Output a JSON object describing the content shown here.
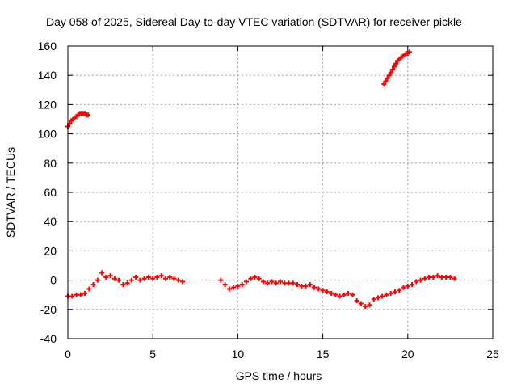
{
  "chart_data": {
    "type": "scatter",
    "title": "Day 058 of 2025, Sidereal Day-to-day VTEC variation (SDTVAR) for receiver pickle",
    "xlabel": "GPS time / hours",
    "ylabel": "SDTVAR / TECUs",
    "xlim": [
      0,
      25
    ],
    "ylim": [
      -40,
      160
    ],
    "xticks": [
      "0",
      "5",
      "10",
      "15",
      "20",
      "25"
    ],
    "yticks": [
      "-40",
      "-20",
      "0",
      "20",
      "40",
      "60",
      "80",
      "100",
      "120",
      "140",
      "160"
    ],
    "grid": true,
    "marker": "+",
    "colors": {
      "series": "#ff0000",
      "axes": "#000000",
      "grid": "#a0a0a0"
    },
    "series": [
      {
        "name": "SDTVAR",
        "x": [
          0.0,
          0.25,
          0.5,
          0.75,
          1.0,
          1.25,
          1.5,
          1.75,
          2.0,
          2.25,
          2.5,
          2.75,
          3.0,
          3.25,
          3.5,
          3.75,
          4.0,
          4.25,
          4.5,
          4.75,
          5.0,
          5.25,
          5.5,
          5.75,
          6.0,
          6.25,
          6.5,
          6.75,
          9.0,
          9.25,
          9.5,
          9.75,
          10.0,
          10.25,
          10.5,
          10.75,
          11.0,
          11.25,
          11.5,
          11.75,
          12.0,
          12.25,
          12.5,
          12.75,
          13.0,
          13.25,
          13.5,
          13.75,
          14.0,
          14.25,
          14.5,
          14.75,
          15.0,
          15.25,
          15.5,
          15.75,
          16.0,
          16.25,
          16.5,
          16.75,
          17.0,
          17.25,
          17.5,
          17.75,
          18.0,
          18.25,
          18.5,
          18.75,
          19.0,
          19.25,
          19.5,
          19.75,
          20.0,
          20.25,
          20.5,
          20.75,
          21.0,
          21.25,
          21.5,
          21.75,
          22.0,
          22.25,
          22.5,
          22.75
        ],
        "y": [
          -11,
          -11,
          -10,
          -10,
          -9,
          -6,
          -3,
          0,
          5,
          2,
          3,
          1,
          0,
          -3,
          -2,
          0,
          2,
          0,
          1,
          2,
          1,
          2,
          3,
          1,
          2,
          1,
          0,
          -1,
          0,
          -3,
          -6,
          -5,
          -4,
          -3,
          -1,
          1,
          2,
          1,
          -1,
          -2,
          -1,
          -2,
          -1,
          -2,
          -2,
          -2,
          -3,
          -4,
          -4,
          -3,
          -5,
          -6,
          -7,
          -8,
          -9,
          -10,
          -11,
          -10,
          -9,
          -10,
          -14,
          -16,
          -18,
          -17,
          -13,
          -12,
          -11,
          -10,
          -9,
          -8,
          -7,
          -5,
          -4,
          -3,
          -1,
          0,
          1,
          2,
          2,
          3,
          2,
          2,
          2,
          1
        ]
      },
      {
        "name": "SDTVAR",
        "x": [
          0.0,
          0.1,
          0.2,
          0.3,
          0.4,
          0.5,
          0.6,
          0.7,
          0.8,
          0.9,
          1.0,
          1.1,
          1.2
        ],
        "y": [
          105,
          107,
          109,
          110,
          111,
          112,
          113,
          114,
          114,
          114,
          114,
          113,
          113
        ]
      },
      {
        "name": "SDTVAR",
        "x": [
          18.6,
          18.7,
          18.8,
          18.9,
          19.0,
          19.1,
          19.2,
          19.3,
          19.4,
          19.5,
          19.6,
          19.7,
          19.8,
          19.9,
          20.0,
          20.1
        ],
        "y": [
          134,
          136,
          138,
          140,
          142,
          144,
          146,
          148,
          150,
          151,
          152,
          153,
          154,
          155,
          155,
          156
        ]
      }
    ]
  }
}
